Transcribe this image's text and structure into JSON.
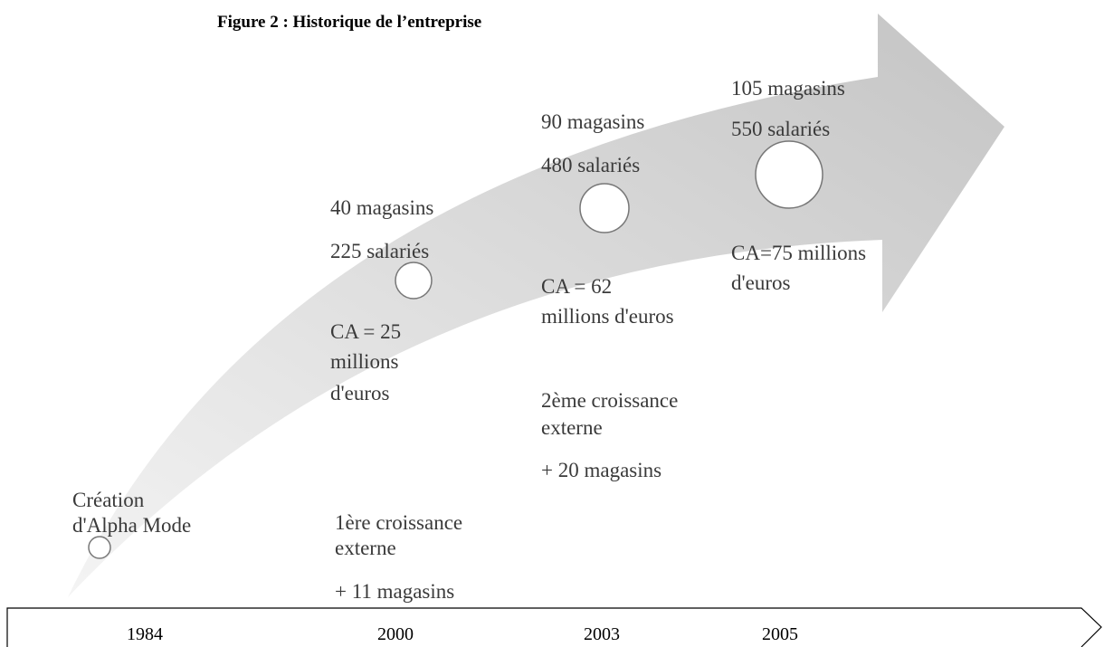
{
  "title": "Figure 2 : Historique de l’entreprise",
  "milestones": [
    {
      "year": "1984",
      "blocks": [
        [
          "Création",
          "d'Alpha Mode"
        ]
      ]
    },
    {
      "year": "2000",
      "blocks": [
        [
          "40 magasins",
          "225 salariés"
        ],
        [
          "CA = 25",
          "millions",
          "d'euros"
        ],
        [
          "1ère croissance",
          "externe",
          "+ 11 magasins"
        ]
      ]
    },
    {
      "year": "2003",
      "blocks": [
        [
          "90 magasins",
          "480 salariés"
        ],
        [
          "CA = 62",
          "millions d'euros"
        ],
        [
          "2ème croissance",
          "externe",
          "+ 20 magasins"
        ]
      ]
    },
    {
      "year": "2005",
      "blocks": [
        [
          "105 magasins",
          "550 salariés"
        ],
        [
          "CA=75 millions",
          "d'euros"
        ]
      ]
    }
  ]
}
